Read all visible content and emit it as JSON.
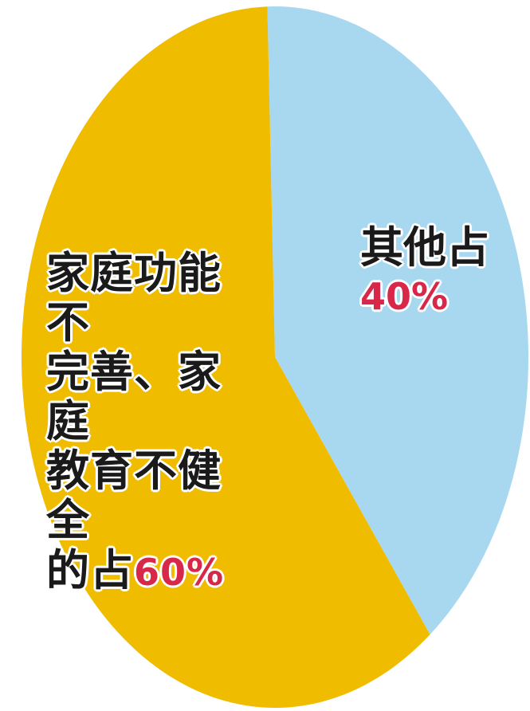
{
  "chart_data": {
    "type": "pie",
    "slices": [
      {
        "label_lines": [
          "家庭功能不",
          "完善、家庭",
          "教育不健全",
          "的占"
        ],
        "percent_text": "60%",
        "value": 60,
        "color": "#f0bc00"
      },
      {
        "label_lines": [
          "其他占"
        ],
        "percent_text": "40%",
        "value": 40,
        "color": "#a8d8f0"
      }
    ],
    "percent_color": "#d8284a",
    "start": "top",
    "direction": "clockwise",
    "order": [
      "其他占",
      "家庭功能不完善、家庭教育不健全的占"
    ]
  }
}
